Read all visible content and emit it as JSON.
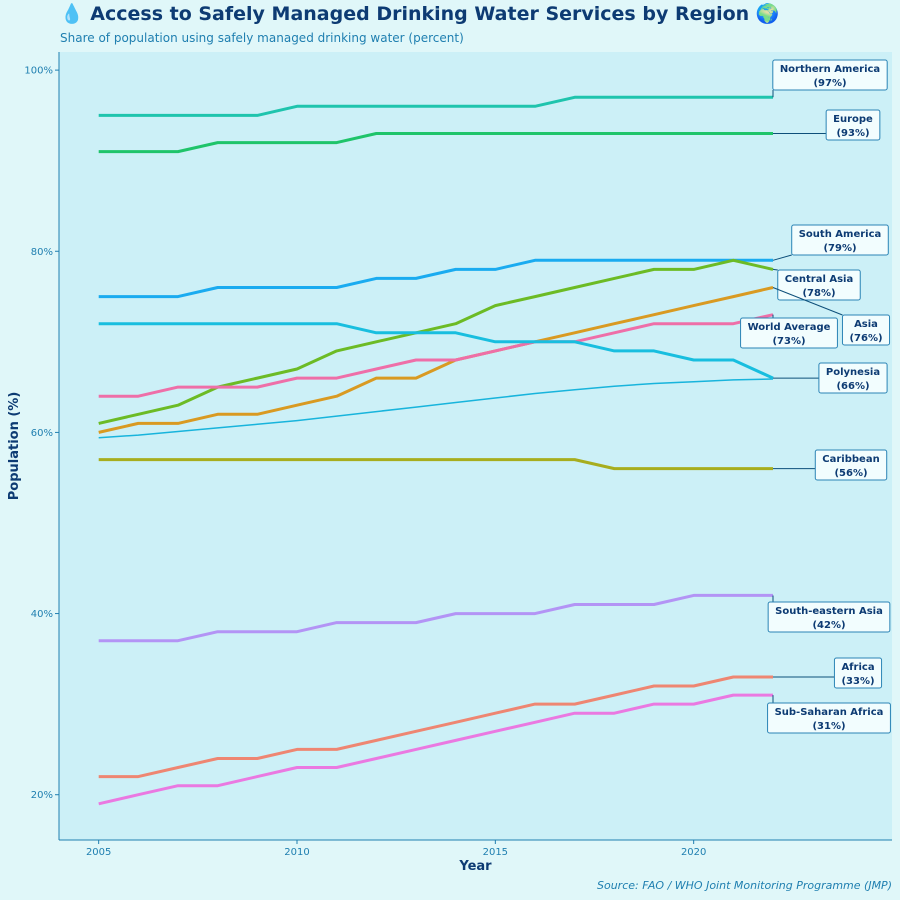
{
  "header": {
    "title": "💧 Access to Safely Managed Drinking Water Services by Region 🌍",
    "subtitle": "Share of population using safely managed drinking water (percent)"
  },
  "footer": {
    "source": "Source: FAO / WHO Joint Monitoring Programme (JMP)"
  },
  "colors": {
    "background": "#e0f7f9",
    "plot_background": "#ccf0f7",
    "axis": "#1f7fb0",
    "title": "#0d3b73"
  },
  "chart_data": {
    "type": "line",
    "xlabel": "Year",
    "ylabel": "Population (%)",
    "xlim": [
      2004,
      2025
    ],
    "ylim": [
      15,
      102
    ],
    "x_ticks": [
      2005,
      2010,
      2015,
      2020
    ],
    "y_ticks": [
      20,
      40,
      60,
      80,
      100
    ],
    "y_tick_labels": [
      "20%",
      "40%",
      "60%",
      "80%",
      "100%"
    ],
    "grid": false,
    "x": [
      2005,
      2006,
      2007,
      2008,
      2009,
      2010,
      2011,
      2012,
      2013,
      2014,
      2015,
      2016,
      2017,
      2018,
      2019,
      2020,
      2021,
      2022
    ],
    "series": [
      {
        "name": "Northern America",
        "label": "(97%)",
        "color": "#1fc4ad",
        "values": [
          95,
          95,
          95,
          95,
          95,
          96,
          96,
          96,
          96,
          96,
          96,
          96,
          97,
          97,
          97,
          97,
          97,
          97
        ]
      },
      {
        "name": "Europe",
        "label": "(93%)",
        "color": "#1fc46a",
        "values": [
          91,
          91,
          91,
          92,
          92,
          92,
          92,
          93,
          93,
          93,
          93,
          93,
          93,
          93,
          93,
          93,
          93,
          93
        ]
      },
      {
        "name": "South America",
        "label": "(79%)",
        "color": "#1aabf0",
        "values": [
          75,
          75,
          75,
          76,
          76,
          76,
          76,
          77,
          77,
          78,
          78,
          79,
          79,
          79,
          79,
          79,
          79,
          79
        ]
      },
      {
        "name": "Central Asia",
        "label": "(78%)",
        "color": "#6cbb25",
        "values": [
          61,
          62,
          63,
          65,
          66,
          67,
          69,
          70,
          71,
          72,
          74,
          75,
          76,
          77,
          78,
          78,
          79,
          78
        ]
      },
      {
        "name": "Asia",
        "label": "(76%)",
        "color": "#d99a22",
        "values": [
          60,
          61,
          61,
          62,
          62,
          63,
          64,
          66,
          66,
          68,
          69,
          70,
          71,
          72,
          73,
          74,
          75,
          76
        ]
      },
      {
        "name": "World Average",
        "label": "(73%)",
        "color": "#ee6fa8",
        "values": [
          64,
          64,
          65,
          65,
          65,
          66,
          66,
          67,
          68,
          68,
          69,
          70,
          70,
          71,
          72,
          72,
          72,
          73
        ]
      },
      {
        "name": "Polynesia",
        "label": "(66%)",
        "color": "#18bedf",
        "values": [
          72,
          72,
          72,
          72,
          72,
          72,
          72,
          71,
          71,
          71,
          70,
          70,
          70,
          69,
          69,
          68,
          68,
          66
        ]
      },
      {
        "name": "Caribbean",
        "label": "(56%)",
        "color": "#a7ad1e",
        "values": [
          57,
          57,
          57,
          57,
          57,
          57,
          57,
          57,
          57,
          57,
          57,
          57,
          57,
          56,
          56,
          56,
          56,
          56
        ]
      },
      {
        "name": "South-eastern Asia",
        "label": "(42%)",
        "color": "#b394f5",
        "values": [
          37,
          37,
          37,
          38,
          38,
          38,
          39,
          39,
          39,
          40,
          40,
          40,
          41,
          41,
          41,
          42,
          42,
          42
        ]
      },
      {
        "name": "Africa",
        "label": "(33%)",
        "color": "#ee8672",
        "values": [
          22,
          22,
          23,
          24,
          24,
          25,
          25,
          26,
          27,
          28,
          29,
          30,
          30,
          31,
          32,
          32,
          33,
          33
        ]
      },
      {
        "name": "Sub-Saharan Africa",
        "label": "(31%)",
        "color": "#ea79e1",
        "values": [
          19,
          20,
          21,
          21,
          22,
          23,
          23,
          24,
          25,
          26,
          27,
          28,
          29,
          29,
          30,
          30,
          31,
          31
        ]
      }
    ],
    "trend": {
      "color": "#18b4dc",
      "values": [
        59.4,
        59.7,
        60.1,
        60.5,
        60.9,
        61.3,
        61.8,
        62.3,
        62.8,
        63.3,
        63.8,
        64.3,
        64.7,
        65.1,
        65.4,
        65.6,
        65.8,
        65.9
      ]
    }
  }
}
